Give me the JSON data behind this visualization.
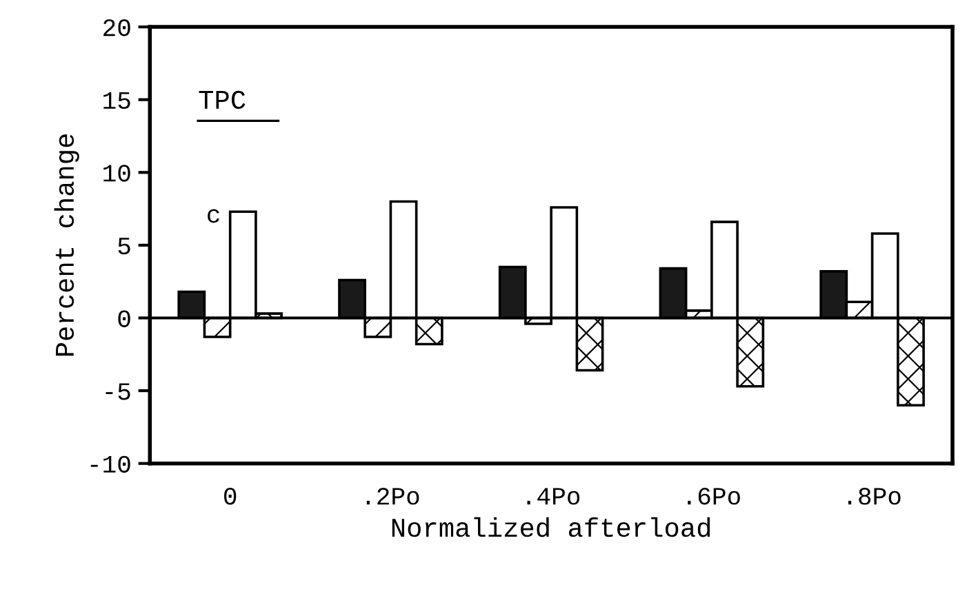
{
  "chart_data": {
    "type": "bar",
    "xlabel": "Normalized afterload",
    "ylabel": "Percent change",
    "categories": [
      "0",
      ".2Po",
      ".4Po",
      ".6Po",
      ".8Po"
    ],
    "series": [
      {
        "color": "#1a1a1a",
        "values": [
          1.8,
          2.6,
          3.5,
          3.4,
          3.2
        ]
      },
      {
        "color": "#000000",
        "values": [
          -1.3,
          -1.3,
          -0.4,
          0.5,
          1.1
        ]
      },
      {
        "color": "#ffffff",
        "values": [
          7.3,
          8.0,
          7.6,
          6.6,
          5.8
        ]
      },
      {
        "color": "#000000",
        "values": [
          0.3,
          -1.8,
          -3.6,
          -4.7,
          -6.0
        ]
      }
    ],
    "ylim": [
      -10,
      20
    ],
    "yticks": [
      -10,
      -5,
      0,
      5,
      10,
      15,
      20
    ],
    "annotations": [
      "TPC",
      "c"
    ],
    "ref_lines": [
      {
        "axis": "y",
        "value": 0,
        "color": "#000000"
      }
    ],
    "grid": false,
    "legend": false
  }
}
